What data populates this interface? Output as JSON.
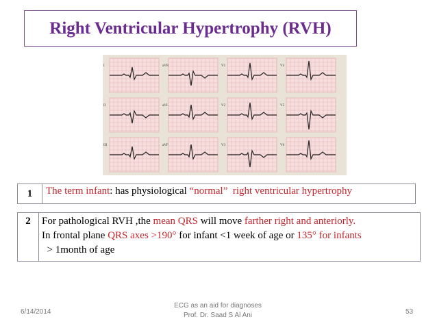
{
  "header": {
    "title": "Right Ventricular Hypertrophy (RVH)"
  },
  "figure": {
    "leads": [
      "I",
      "aVR",
      "V1",
      "V4",
      "II",
      "aVL",
      "V2",
      "V5",
      "III",
      "aVF",
      "V3",
      "V6"
    ]
  },
  "rows": [
    {
      "number": "1",
      "lines": [
        [
          {
            "text": "The term infant",
            "color": "#c0272d"
          },
          {
            "text": ": has physiological ",
            "color": "#000000"
          },
          {
            "text": "“normal”  right ventricular hypertrophy",
            "color": "#c0272d"
          }
        ]
      ]
    },
    {
      "number": "2",
      "lines": [
        [
          {
            "text": "For pathological RVH ,the ",
            "color": "#000000"
          },
          {
            "text": "mean QRS",
            "color": "#c0272d"
          },
          {
            "text": " will move ",
            "color": "#000000"
          },
          {
            "text": "farther right and anteriorly.",
            "color": "#c0272d"
          }
        ],
        [
          {
            "text": "In frontal plane ",
            "color": "#000000"
          },
          {
            "text": "QRS axes >190°",
            "color": "#c0272d"
          },
          {
            "text": " for infant <1 week of age or ",
            "color": "#000000"
          },
          {
            "text": "135°",
            "color": "#c0272d"
          },
          {
            "text": " for infants",
            "color": "#c0272d"
          }
        ],
        [
          {
            "text": "  > 1month of age",
            "color": "#000000"
          }
        ]
      ]
    }
  ],
  "footer": {
    "date": "6/14/2014",
    "center": [
      "ECG as an aid for diagnoses",
      "Prof. Dr. Saad S Al Ani"
    ],
    "page": "53"
  }
}
